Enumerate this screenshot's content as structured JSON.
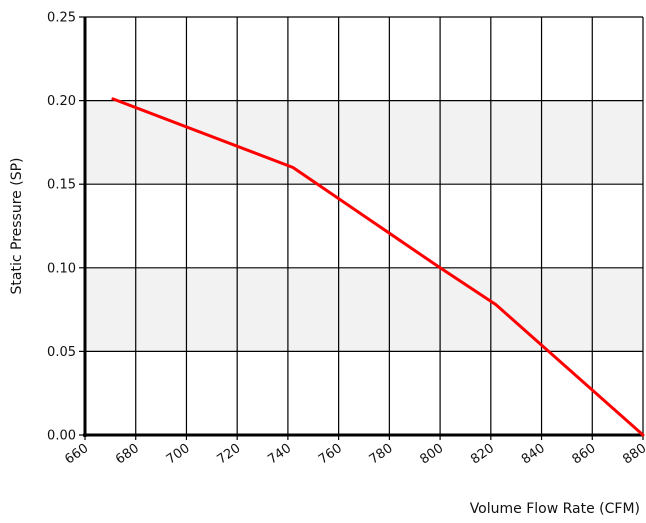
{
  "chart_data": {
    "type": "line",
    "title": "",
    "xlabel": "Volume Flow Rate (CFM)",
    "ylabel": "Static Pressure (SP)",
    "xlim": [
      660,
      880
    ],
    "ylim": [
      0,
      0.25
    ],
    "x_ticks": [
      660,
      680,
      700,
      720,
      740,
      760,
      780,
      800,
      820,
      840,
      860,
      880
    ],
    "y_ticks": [
      0,
      0.05,
      0.1,
      0.15,
      0.2,
      0.25
    ],
    "x_tick_labels": [
      "660",
      "680",
      "700",
      "720",
      "740",
      "760",
      "780",
      "800",
      "820",
      "840",
      "860",
      "880"
    ],
    "y_tick_labels": [
      "0.00",
      "0.05",
      "0.10",
      "0.15",
      "0.20",
      "0.25"
    ],
    "grid": true,
    "band_color": "#f2f2f2",
    "series": [
      {
        "color": "#ff0000",
        "x": [
          671,
          742,
          800,
          822,
          880
        ],
        "y": [
          0.201,
          0.16,
          0.1,
          0.078,
          0.0
        ]
      }
    ]
  }
}
